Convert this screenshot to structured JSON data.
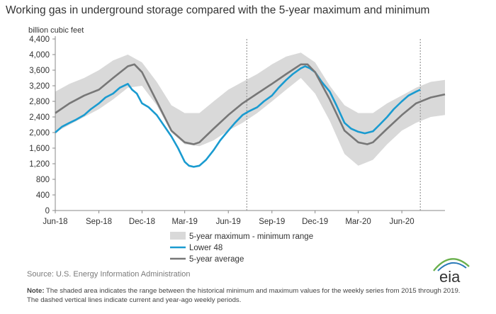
{
  "title": "Working gas in underground storage compared with the 5-year maximum and minimum",
  "source": "Source:  U.S. Energy Information Administration",
  "note_label": "Note:",
  "note_text": " The shaded area indicates the range between the historical minimum and maximum values for the weekly series from 2015 through 2019. The dashed vertical lines indicate current and year-ago weekly periods.",
  "logo_text": "eia",
  "colors": {
    "range_fill": "#d9d9d9",
    "lower48": "#1a9bd0",
    "avg": "#777777",
    "axis": "#888888",
    "dashed": "#999999",
    "logo_arc": "#6ab04c",
    "logo_text": "#333333"
  },
  "chart_data": {
    "type": "area",
    "title": "Working gas in underground storage compared with the 5-year maximum and minimum",
    "ylabel": "billion cubic feet",
    "ylim": [
      0,
      4400
    ],
    "yticks": [
      0,
      400,
      800,
      1200,
      1600,
      2000,
      2400,
      2800,
      3200,
      3600,
      4000,
      4400
    ],
    "ytick_labels": [
      "0",
      "400",
      "800",
      "1,200",
      "1,600",
      "2,000",
      "2,400",
      "2,800",
      "3,200",
      "3,600",
      "4,000",
      "4,400"
    ],
    "xlim": [
      "2018-06-01",
      "2020-08-31"
    ],
    "xticks": [
      "2018-06-01",
      "2018-09-01",
      "2018-12-01",
      "2019-03-01",
      "2019-06-01",
      "2019-09-01",
      "2019-12-01",
      "2020-03-01",
      "2020-06-01"
    ],
    "xtick_labels": [
      "Jun-18",
      "Sep-18",
      "Dec-18",
      "Mar-19",
      "Jun-19",
      "Sep-19",
      "Dec-19",
      "Mar-20",
      "Jun-20"
    ],
    "dashed_lines": [
      "2019-07-10",
      "2020-07-10"
    ],
    "legend": {
      "position": "bottom",
      "items": [
        "5-year maximum - minimum range",
        "Lower 48",
        "5-year average"
      ]
    },
    "range": {
      "name": "5-year maximum - minimum range",
      "x": [
        "2018-06-01",
        "2018-07-01",
        "2018-08-01",
        "2018-09-01",
        "2018-10-01",
        "2018-11-01",
        "2018-12-01",
        "2019-01-01",
        "2019-02-01",
        "2019-03-01",
        "2019-04-01",
        "2019-05-01",
        "2019-06-01",
        "2019-07-01",
        "2019-08-01",
        "2019-09-01",
        "2019-10-01",
        "2019-11-01",
        "2019-12-01",
        "2020-01-01",
        "2020-02-01",
        "2020-03-01",
        "2020-04-01",
        "2020-05-01",
        "2020-06-01",
        "2020-07-01",
        "2020-08-01",
        "2020-08-31"
      ],
      "upper": [
        3050,
        3250,
        3400,
        3600,
        3850,
        4000,
        3800,
        3300,
        2700,
        2500,
        2500,
        2800,
        3100,
        3300,
        3500,
        3750,
        3950,
        4050,
        3800,
        3200,
        2700,
        2500,
        2500,
        2750,
        2950,
        3150,
        3300,
        3350
      ],
      "lower": [
        2000,
        2200,
        2400,
        2600,
        2850,
        3150,
        3200,
        2700,
        2000,
        1700,
        1650,
        1800,
        2050,
        2250,
        2500,
        2800,
        3100,
        3400,
        3000,
        2300,
        1450,
        1150,
        1300,
        1700,
        2050,
        2250,
        2400,
        2450
      ]
    },
    "series": [
      {
        "name": "Lower 48",
        "x": [
          "2018-06-01",
          "2018-06-15",
          "2018-07-01",
          "2018-07-15",
          "2018-08-01",
          "2018-08-15",
          "2018-09-01",
          "2018-09-15",
          "2018-10-01",
          "2018-10-15",
          "2018-11-01",
          "2018-11-10",
          "2018-11-20",
          "2018-12-01",
          "2018-12-15",
          "2019-01-01",
          "2019-01-15",
          "2019-02-01",
          "2019-02-15",
          "2019-03-01",
          "2019-03-10",
          "2019-03-20",
          "2019-04-01",
          "2019-04-15",
          "2019-05-01",
          "2019-05-15",
          "2019-06-01",
          "2019-06-15",
          "2019-07-01",
          "2019-07-15",
          "2019-08-01",
          "2019-08-15",
          "2019-09-01",
          "2019-09-15",
          "2019-10-01",
          "2019-10-15",
          "2019-11-01",
          "2019-11-10",
          "2019-11-20",
          "2019-12-01",
          "2019-12-15",
          "2020-01-01",
          "2020-01-15",
          "2020-02-01",
          "2020-02-15",
          "2020-03-01",
          "2020-03-15",
          "2020-04-01",
          "2020-04-15",
          "2020-05-01",
          "2020-05-15",
          "2020-06-01",
          "2020-06-15",
          "2020-07-01",
          "2020-07-10"
        ],
        "values": [
          2000,
          2150,
          2250,
          2330,
          2450,
          2600,
          2750,
          2900,
          3000,
          3150,
          3250,
          3100,
          3000,
          2750,
          2650,
          2450,
          2200,
          1900,
          1600,
          1250,
          1150,
          1120,
          1150,
          1300,
          1550,
          1800,
          2050,
          2250,
          2450,
          2550,
          2650,
          2800,
          2950,
          3150,
          3350,
          3500,
          3650,
          3700,
          3650,
          3550,
          3300,
          3050,
          2700,
          2250,
          2100,
          2020,
          1980,
          2030,
          2200,
          2400,
          2600,
          2800,
          2950,
          3050,
          3100
        ]
      },
      {
        "name": "5-year average",
        "x": [
          "2018-06-01",
          "2018-07-01",
          "2018-08-01",
          "2018-09-01",
          "2018-10-01",
          "2018-11-01",
          "2018-11-15",
          "2018-12-01",
          "2019-01-01",
          "2019-02-01",
          "2019-03-01",
          "2019-03-20",
          "2019-04-01",
          "2019-05-01",
          "2019-06-01",
          "2019-07-01",
          "2019-08-01",
          "2019-09-01",
          "2019-10-01",
          "2019-11-01",
          "2019-11-15",
          "2019-12-01",
          "2020-01-01",
          "2020-02-01",
          "2020-03-01",
          "2020-03-20",
          "2020-04-01",
          "2020-05-01",
          "2020-06-01",
          "2020-07-01",
          "2020-08-01",
          "2020-08-31"
        ],
        "values": [
          2500,
          2750,
          2950,
          3100,
          3400,
          3700,
          3750,
          3550,
          2800,
          2050,
          1750,
          1700,
          1750,
          2100,
          2450,
          2750,
          3000,
          3250,
          3500,
          3750,
          3750,
          3550,
          2850,
          2050,
          1750,
          1700,
          1750,
          2100,
          2450,
          2750,
          2900,
          2980
        ]
      }
    ]
  }
}
